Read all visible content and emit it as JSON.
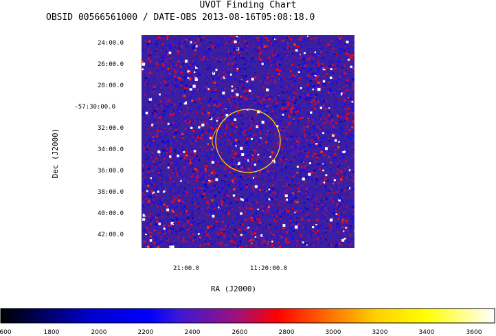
{
  "title": "UVOT Finding Chart",
  "subtitle": "OBSID 00566561000 / DATE-OBS 2013-08-16T05:08:18.0",
  "chart_data": {
    "type": "heatmap",
    "title": "UVOT Finding Chart",
    "subtitle": "OBSID 00566561000 / DATE-OBS 2013-08-16T05:08:18.0",
    "xlabel": "RA (J2000)",
    "ylabel": "Dec (J2000)",
    "x_ticks": [
      "21:00.0",
      "11:20:00.0"
    ],
    "y_ticks": [
      "24:00.0",
      "26:00.0",
      "28:00.0",
      "-57:30:00.0",
      "32:00.0",
      "34:00.0",
      "36:00.0",
      "38:00.0",
      "40:00.0",
      "42:00.0"
    ],
    "colorbar": {
      "ticks": [
        "600",
        "1800",
        "2000",
        "2200",
        "2400",
        "2600",
        "2800",
        "3000",
        "3200",
        "3400",
        "3600"
      ],
      "colors": [
        "#000000",
        "#0000ff",
        "#ff0000",
        "#ffff00",
        "#ffffff"
      ]
    },
    "overlay": {
      "shape": "circle",
      "color": "#ffd700"
    },
    "grid": false
  }
}
